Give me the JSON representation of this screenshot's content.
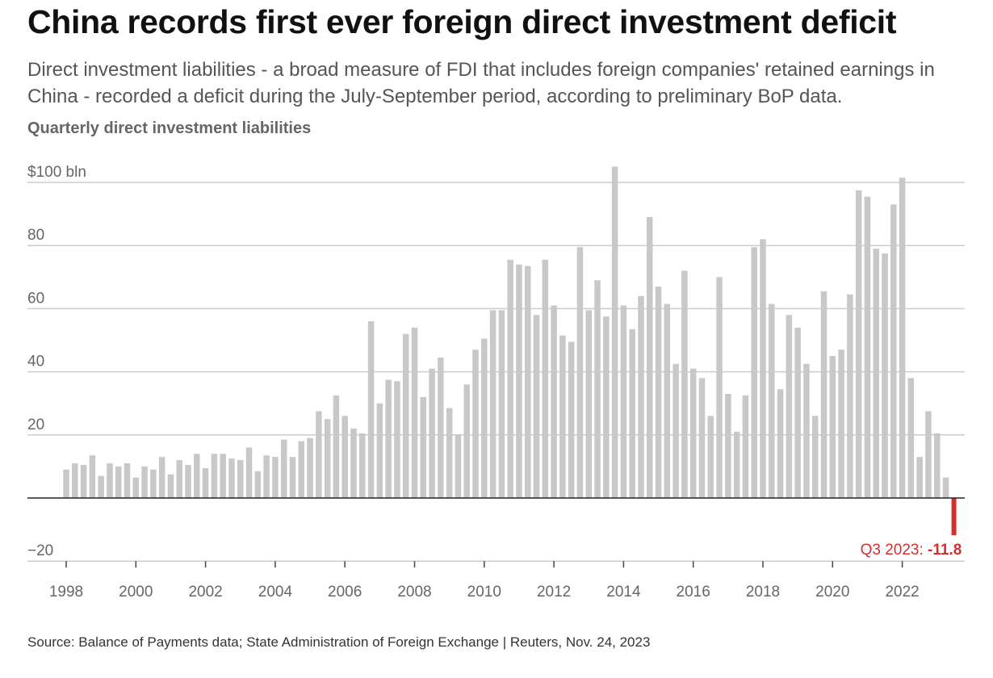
{
  "title": "China records first ever foreign direct investment deficit",
  "subtitle": "Direct investment liabilities - a broad measure of FDI that includes foreign companies' retained earnings in China - recorded a deficit during the July-September period, according to preliminary BoP data.",
  "chart_label": "Quarterly direct investment liabilities",
  "source": "Source: Balance of Payments data; State Administration of Foreign Exchange | Reuters, Nov. 24, 2023",
  "colors": {
    "bar": "#c8c8c8",
    "highlight": "#d32f2f",
    "grid": "#cccccc",
    "baseline": "#222222"
  },
  "chart_data": {
    "type": "bar",
    "title": "Quarterly direct investment liabilities",
    "ylabel": "$100 bln",
    "ylim": [
      -20,
      105
    ],
    "yticks": [
      -20,
      0,
      20,
      40,
      60,
      80,
      100
    ],
    "ytick_labels": [
      "−20",
      "",
      "20",
      "40",
      "60",
      "80",
      "$100 bln"
    ],
    "xticks": [
      "1998",
      "2000",
      "2002",
      "2004",
      "2006",
      "2008",
      "2010",
      "2012",
      "2014",
      "2016",
      "2018",
      "2020",
      "2022"
    ],
    "x_start": "1998 Q1",
    "x_end": "2023 Q3",
    "values": [
      9,
      11,
      10.5,
      13.5,
      7,
      11,
      10,
      11,
      6.5,
      10,
      9,
      13,
      7.5,
      12,
      10.5,
      14,
      9.5,
      14,
      14,
      12.5,
      12,
      16,
      8.5,
      13.5,
      13,
      18.5,
      13,
      18,
      19,
      27.5,
      25,
      32.5,
      26,
      22,
      20.5,
      56,
      30,
      37.5,
      37,
      52,
      54,
      32,
      41,
      44.5,
      28.5,
      20,
      36,
      47,
      50.5,
      59.5,
      59.5,
      75.5,
      74,
      73.5,
      58,
      75.5,
      61,
      51.5,
      49.5,
      79.5,
      59.5,
      69,
      57.5,
      105,
      61,
      53.5,
      64,
      89,
      67,
      61.5,
      42.5,
      72,
      41,
      38,
      26,
      70,
      33,
      21,
      32.5,
      79.5,
      82,
      61.5,
      34.5,
      58,
      54,
      42.5,
      26,
      65.5,
      45,
      47,
      64.5,
      97.5,
      95.5,
      79,
      77.5,
      93,
      101.5,
      38,
      13,
      27.5,
      20.5,
      6.5,
      -11.8
    ],
    "annotation": {
      "label": "Q3 2023: ",
      "value": "-11.8"
    }
  }
}
